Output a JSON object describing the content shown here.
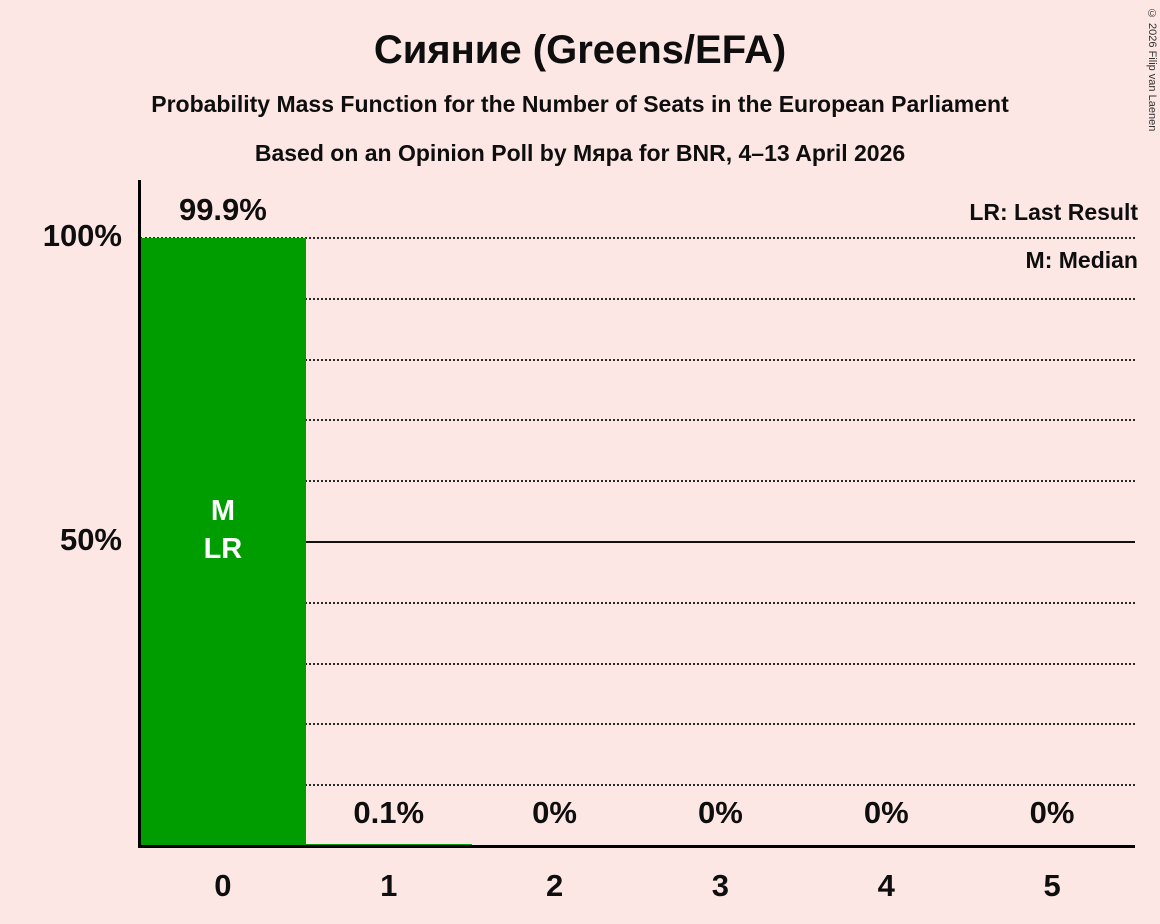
{
  "chart_data": {
    "type": "bar",
    "title": "Сияние (Greens/EFA)",
    "subtitle": "Probability Mass Function for the Number of Seats in the European Parliament",
    "poll_info": "Based on an Opinion Poll by Мяра for BNR, 4–13 April 2026",
    "categories": [
      "0",
      "1",
      "2",
      "3",
      "4",
      "5"
    ],
    "values": [
      99.9,
      0.1,
      0,
      0,
      0,
      0
    ],
    "value_labels": [
      "99.9%",
      "0.1%",
      "0%",
      "0%",
      "0%",
      "0%"
    ],
    "xlabel": "",
    "ylabel": "",
    "ylim": [
      0,
      100
    ],
    "ytick_labels": {
      "100": "100%",
      "50": "50%"
    },
    "gridlines_percent": [
      10,
      20,
      30,
      40,
      50,
      60,
      70,
      80,
      90,
      100
    ],
    "solid_gridline": 50,
    "grid": true,
    "legend_position": "top-right",
    "legend": [
      "LR: Last Result",
      "M: Median"
    ],
    "bar_annotations": [
      {
        "category": "0",
        "lines": [
          "M",
          "LR"
        ]
      }
    ],
    "bar_color": "#009d00",
    "background_color": "#fce7e4",
    "copyright": "© 2026 Filip van Laenen"
  }
}
